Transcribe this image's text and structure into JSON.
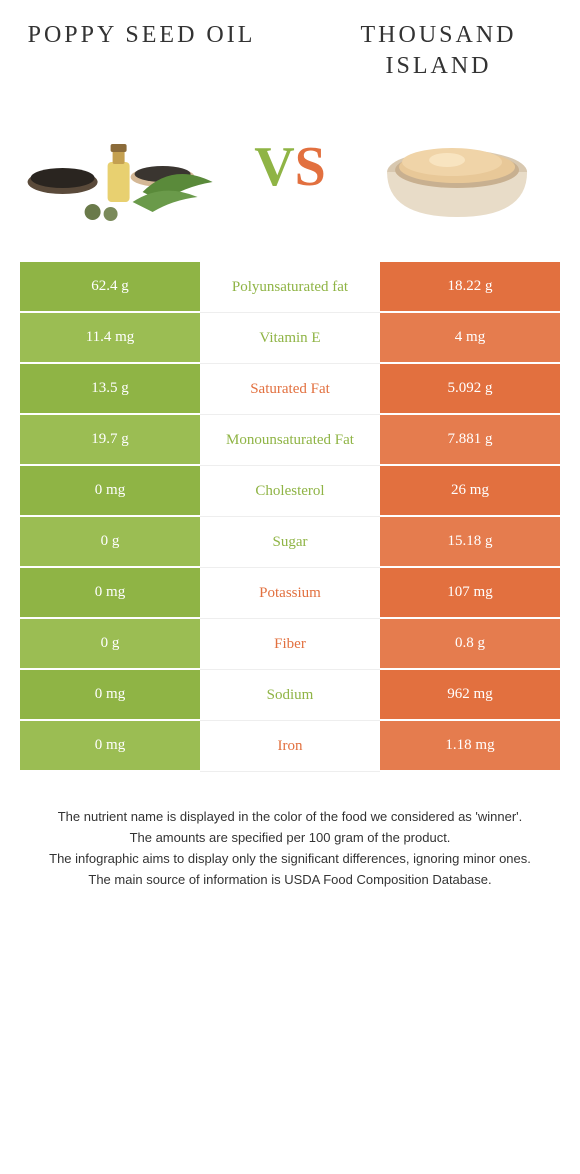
{
  "left_title": "POPPY SEED OIL",
  "right_title": "THOUSAND ISLAND",
  "vs_text": "VS",
  "colors": {
    "left": "#8fb445",
    "right": "#e2703f",
    "left_row_alt": "#9bbd53",
    "right_row_alt": "#e57c4e"
  },
  "rows": [
    {
      "left": "62.4 g",
      "label": "Polyunsaturated fat",
      "right": "18.22 g",
      "winner": "left"
    },
    {
      "left": "11.4 mg",
      "label": "Vitamin E",
      "right": "4 mg",
      "winner": "left"
    },
    {
      "left": "13.5 g",
      "label": "Saturated Fat",
      "right": "5.092 g",
      "winner": "right"
    },
    {
      "left": "19.7 g",
      "label": "Monounsaturated Fat",
      "right": "7.881 g",
      "winner": "left"
    },
    {
      "left": "0 mg",
      "label": "Cholesterol",
      "right": "26 mg",
      "winner": "left"
    },
    {
      "left": "0 g",
      "label": "Sugar",
      "right": "15.18 g",
      "winner": "left"
    },
    {
      "left": "0 mg",
      "label": "Potassium",
      "right": "107 mg",
      "winner": "right"
    },
    {
      "left": "0 g",
      "label": "Fiber",
      "right": "0.8 g",
      "winner": "right"
    },
    {
      "left": "0 mg",
      "label": "Sodium",
      "right": "962 mg",
      "winner": "left"
    },
    {
      "left": "0 mg",
      "label": "Iron",
      "right": "1.18 mg",
      "winner": "right"
    }
  ],
  "footer": [
    "The nutrient name is displayed in the color of the food we considered as 'winner'.",
    "The amounts are specified per 100 gram of the product.",
    "The infographic aims to display only the significant differences, ignoring minor ones.",
    "The main source of information is USDA Food Composition Database."
  ]
}
